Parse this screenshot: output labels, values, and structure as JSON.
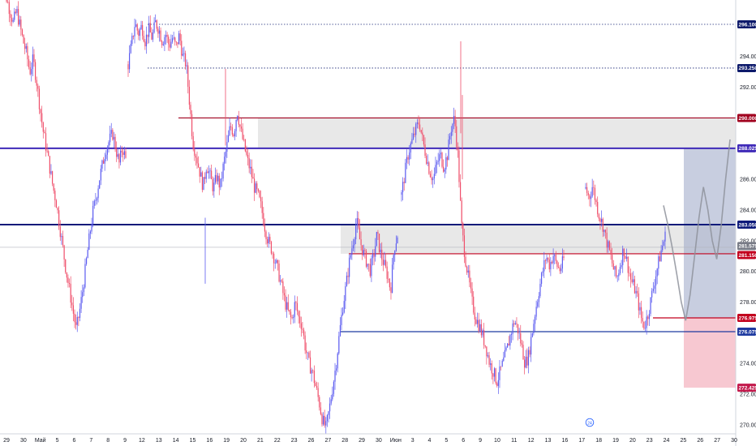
{
  "chart_data": {
    "type": "candlestick",
    "title": "",
    "xlabel": "",
    "ylabel": "",
    "ylim": [
      269.5,
      299.2
    ],
    "grid": false,
    "y_ticks": [
      "270.000",
      "272.000",
      "274.000",
      "278.000",
      "280.000",
      "282.000",
      "284.000",
      "286.000",
      "288.000",
      "292.000",
      "294.000"
    ],
    "x_ticks": [
      "29",
      "30",
      "Май",
      "5",
      "6",
      "7",
      "8",
      "9",
      "12",
      "13",
      "14",
      "15",
      "16",
      "19",
      "20",
      "21",
      "22",
      "23",
      "26",
      "27",
      "28",
      "29",
      "30",
      "Июн",
      "3",
      "4",
      "5",
      "6",
      "9",
      "10",
      "11",
      "12",
      "13",
      "16",
      "17",
      "18",
      "19",
      "20",
      "23",
      "24",
      "25",
      "26",
      "27",
      "30"
    ],
    "price_levels": [
      {
        "label": "296.100",
        "value": 296.1,
        "color": "#1e2a78",
        "style": "dotted"
      },
      {
        "label": "293.250",
        "value": 293.25,
        "color": "#1e2a78",
        "style": "dotted"
      },
      {
        "label": "290.000",
        "value": 290.0,
        "color": "#a0001e",
        "style": "solid"
      },
      {
        "label": "288.025",
        "value": 288.025,
        "color": "#3f2ab8",
        "style": "thick"
      },
      {
        "label": "283.050",
        "value": 283.05,
        "color": "#0d1a7a",
        "style": "thick"
      },
      {
        "label": "281.575",
        "value": 281.575,
        "color": "#787b86",
        "style": "thin"
      },
      {
        "label": "281.150",
        "value": 281.15,
        "color": "#c2001e",
        "style": "solid"
      },
      {
        "label": "276.975",
        "value": 276.975,
        "color": "#c2001e",
        "style": "solid"
      },
      {
        "label": "276.075",
        "value": 276.075,
        "color": "#1e3aa0",
        "style": "solid"
      },
      {
        "label": "272.425",
        "value": 272.425,
        "color": "#c2184b",
        "style": "none"
      }
    ],
    "zones": [
      {
        "from": 288.025,
        "to": 290.0,
        "color": "#e6e6e6"
      },
      {
        "from": 281.15,
        "to": 283.05,
        "color": "#e6e6e6"
      }
    ],
    "position": {
      "entry": 276.975,
      "target": 288.025,
      "stop": 272.425
    },
    "projection": [
      284.3,
      283.0,
      281.5,
      279.8,
      278.0,
      276.8,
      278.5,
      281.0,
      283.5,
      285.5,
      284.0,
      282.0,
      280.8,
      283.0,
      286.0,
      288.6
    ],
    "series": [
      {
        "values": [
          299.0,
          298.5,
          297.8,
          297.0,
          296.2,
          297.0,
          296.0,
          295.0,
          294.2,
          293.0,
          293.8,
          292.5,
          290.8,
          289.2,
          288.0,
          286.8,
          285.5,
          284.5,
          283.0,
          281.5,
          280.0,
          278.8,
          277.5,
          276.2,
          277.3,
          278.8,
          280.5,
          282.2,
          283.8,
          284.8,
          286.0,
          287.0,
          288.0,
          288.5,
          289.0,
          288.0,
          287.0,
          288.1,
          287.3
        ]
      },
      {
        "values": [
          293.5,
          294.8,
          296.2,
          295.5,
          296.0,
          295.0,
          295.8,
          295.2,
          296.2,
          295.8,
          295.0,
          295.5,
          294.7,
          295.2,
          294.6,
          295.4,
          294.0,
          293.5,
          291.0,
          288.4,
          287.5,
          286.5,
          285.5,
          287.0,
          286.2,
          285.4,
          286.2,
          285.5,
          287.0,
          288.2,
          289.5,
          289.0,
          290.5,
          289.2,
          288.2,
          287.2,
          286.5,
          285.5,
          285.0,
          284.2,
          283.0,
          282.0,
          281.5,
          280.8,
          280.0,
          279.0,
          278.0,
          277.3,
          276.8,
          278.0,
          277.0,
          276.5,
          275.0,
          274.0,
          273.5,
          272.5,
          271.5,
          270.3,
          269.8,
          271.0,
          272.5,
          274.0,
          276.0,
          277.8,
          279.2,
          280.8,
          282.0,
          283.3,
          282.0,
          281.2,
          280.6,
          280.1,
          281.0,
          282.4,
          281.2,
          280.5,
          279.8,
          278.8,
          281.5,
          282.4
        ]
      },
      {
        "values": [
          285.0,
          286.5,
          287.8,
          288.5,
          289.2,
          289.8,
          288.5,
          287.5,
          286.5,
          286.0,
          287.0,
          287.6,
          286.8,
          287.6,
          289.3,
          290.0,
          287.5,
          283.0,
          281.0,
          279.5,
          278.0,
          277.0,
          276.5,
          275.8,
          275.0,
          274.0,
          273.5,
          272.8,
          273.5,
          274.2,
          275.0,
          276.0,
          276.8,
          276.2,
          275.2,
          274.0,
          274.5,
          276.0,
          277.5,
          278.8,
          280.0,
          281.0,
          280.4,
          281.1,
          280.4,
          280.1,
          280.8
        ]
      },
      {
        "values": [
          285.4,
          284.8,
          285.6,
          284.5,
          283.6,
          283.0,
          282.0,
          281.2,
          280.2,
          279.5,
          280.5,
          281.5,
          280.6,
          279.5,
          279.0,
          278.2,
          277.0,
          276.4,
          277.2,
          278.3,
          279.5,
          280.5,
          281.5,
          282.3
        ]
      }
    ]
  }
}
